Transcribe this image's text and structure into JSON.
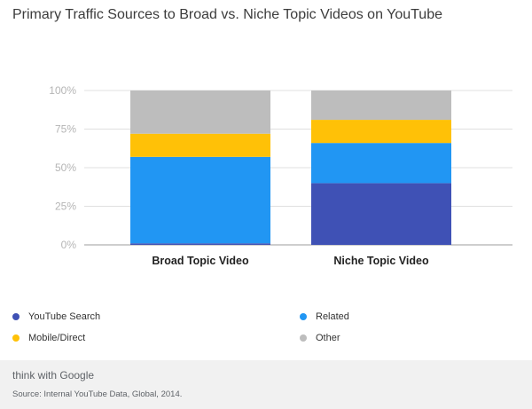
{
  "title": "Primary Traffic Sources to Broad vs. Niche Topic Videos on YouTube",
  "footer": {
    "brand": "think with Google",
    "source": "Source: Internal YouTube Data, Global, 2014."
  },
  "chart_data": {
    "type": "bar",
    "stacked": true,
    "title": "Primary Traffic Sources to Broad vs. Niche Topic Videos on YouTube",
    "categories": [
      "Broad Topic Video",
      "Niche Topic Video"
    ],
    "series": [
      {
        "name": "YouTube Search",
        "color": "#3f51b5",
        "values": [
          1,
          40
        ]
      },
      {
        "name": "Related",
        "color": "#2196f3",
        "values": [
          56,
          26
        ]
      },
      {
        "name": "Mobile/Direct",
        "color": "#ffc107",
        "values": [
          15,
          15
        ]
      },
      {
        "name": "Other",
        "color": "#bdbdbd",
        "values": [
          28,
          19
        ]
      }
    ],
    "yticks": [
      "0%",
      "25%",
      "50%",
      "75%",
      "100%"
    ],
    "ylim": [
      0,
      100
    ],
    "grid": true,
    "legend": "bottom"
  }
}
